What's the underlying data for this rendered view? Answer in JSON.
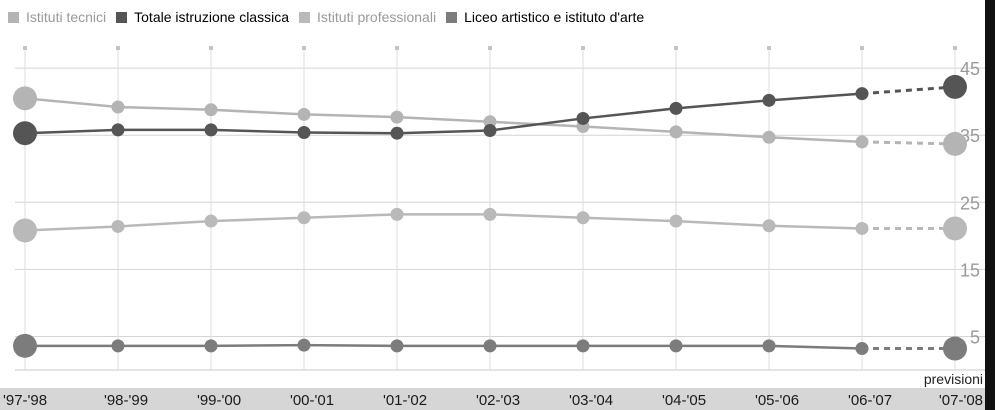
{
  "chart_data": {
    "type": "line",
    "categories": [
      "'97-'98",
      "'98-'99",
      "'99-'00",
      "'00-'01",
      "'01-'02",
      "'02-'03",
      "'03-'04",
      "'04-'05",
      "'05-'06",
      "'06-'07",
      "'07-'08"
    ],
    "forecast_label": "previsioni",
    "forecast_from_index": 9,
    "y_ticks": [
      "45",
      "35",
      "25",
      "15",
      "5"
    ],
    "y_tick_values": [
      45,
      35,
      25,
      15,
      5
    ],
    "ylim": [
      0,
      48
    ],
    "grid": true,
    "legend_position": "top",
    "series": [
      {
        "name": "Istituti tecnici",
        "color": "#b4b4b4",
        "text_color": "#9a9a9a",
        "values": [
          40.5,
          39.2,
          38.8,
          38.1,
          37.7,
          37.0,
          36.3,
          35.5,
          34.7,
          34.0,
          33.7
        ]
      },
      {
        "name": "Totale istruzione classica",
        "color": "#555555",
        "text_color": "#000000",
        "values": [
          35.3,
          35.8,
          35.8,
          35.4,
          35.3,
          35.7,
          37.5,
          39.0,
          40.2,
          41.2,
          42.2
        ]
      },
      {
        "name": "Istituti professionali",
        "color": "#b9b9b9",
        "text_color": "#9a9a9a",
        "values": [
          20.8,
          21.4,
          22.2,
          22.7,
          23.2,
          23.2,
          22.7,
          22.2,
          21.5,
          21.1,
          21.1
        ]
      },
      {
        "name": "Liceo artistico e istituto d'arte",
        "color": "#7c7c7c",
        "text_color": "#000000",
        "values": [
          3.6,
          3.6,
          3.6,
          3.7,
          3.6,
          3.6,
          3.6,
          3.6,
          3.6,
          3.2,
          3.2
        ]
      }
    ]
  }
}
